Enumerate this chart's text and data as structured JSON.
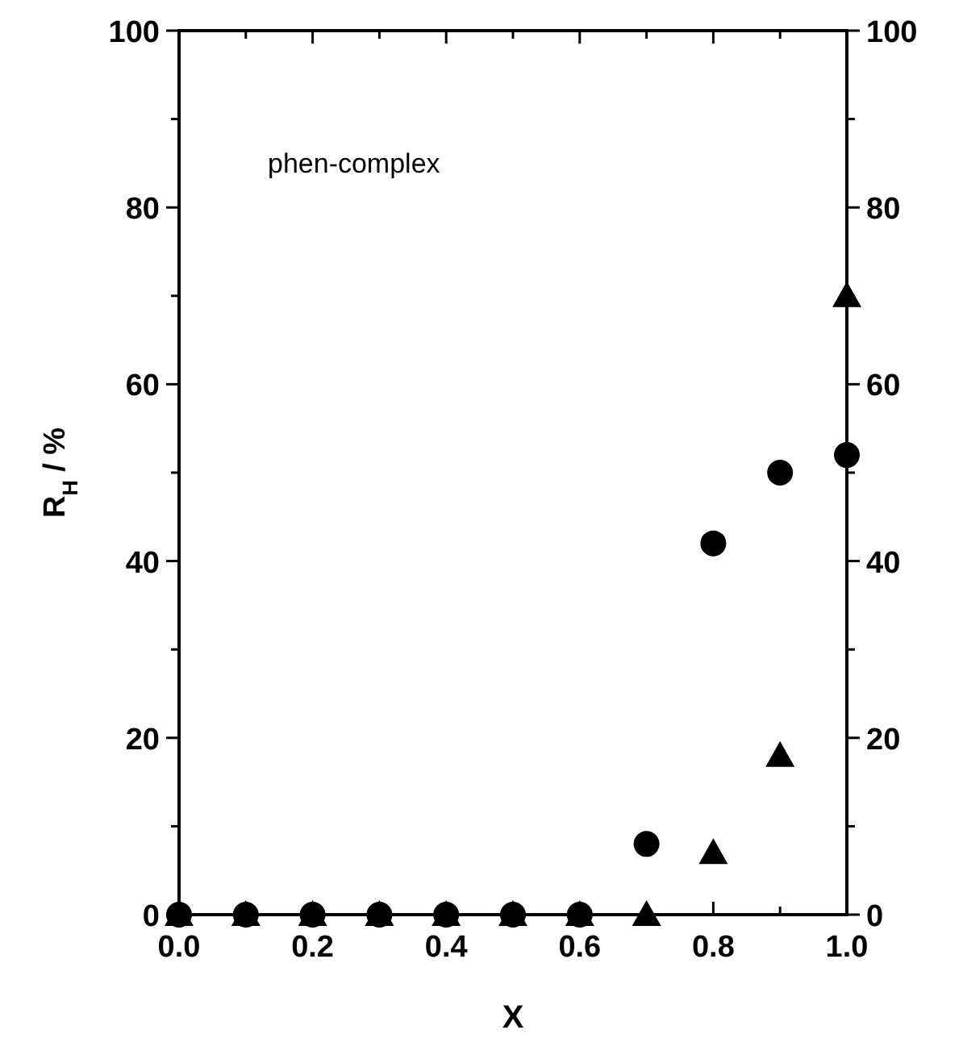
{
  "chart_data": {
    "type": "scatter",
    "xlabel": "X",
    "ylabel": "R$_{H}$/ %",
    "annotations": [
      {
        "text": "phen-complex"
      }
    ],
    "x": [
      0,
      0.1,
      0.2,
      0.3,
      0.4,
      0.5,
      0.6,
      0.7,
      0.8,
      0.9,
      1.0
    ],
    "series": [
      {
        "color": "#000000",
        "marker": "circle",
        "values": [
          0,
          0,
          0,
          0,
          0,
          0,
          0,
          8,
          42,
          50,
          52
        ]
      },
      {
        "color": "#000000",
        "marker": "triangle",
        "values": [
          0,
          0,
          0,
          0,
          0,
          0,
          0,
          0,
          7,
          18,
          70
        ]
      }
    ],
    "xlim": [
      0,
      1
    ],
    "xticks": [
      {
        "value": 0,
        "label": "0.0"
      },
      {
        "value": 0.1,
        "label": null
      },
      {
        "value": 0.2,
        "label": "0.2"
      },
      {
        "value": 0.3,
        "label": null
      },
      {
        "value": 0.4,
        "label": "0.4"
      },
      {
        "value": 0.5,
        "label": null
      },
      {
        "value": 0.6,
        "label": "0.6"
      },
      {
        "value": 0.7,
        "label": null
      },
      {
        "value": 0.8,
        "label": "0.8"
      },
      {
        "value": 0.9,
        "label": null
      },
      {
        "value": 1,
        "label": "1.0"
      }
    ],
    "ylim": [
      0,
      100
    ],
    "yticks": [
      0,
      {
        "value": 10,
        "label": null
      },
      20,
      {
        "value": 30,
        "label": null
      },
      40,
      {
        "value": 50,
        "label": null
      },
      60,
      {
        "value": 70,
        "label": null
      },
      80,
      {
        "value": 90,
        "label": null
      },
      100
    ],
    "y2lim": [
      0,
      100
    ],
    "y2ticks": [
      0,
      {
        "value": 10,
        "label": null
      },
      20,
      {
        "value": 30,
        "label": null
      },
      40,
      {
        "value": 50,
        "label": null
      },
      60,
      {
        "value": 70,
        "label": null
      },
      80,
      {
        "value": 90,
        "label": null
      },
      100
    ],
    "tick_labels": true
  }
}
